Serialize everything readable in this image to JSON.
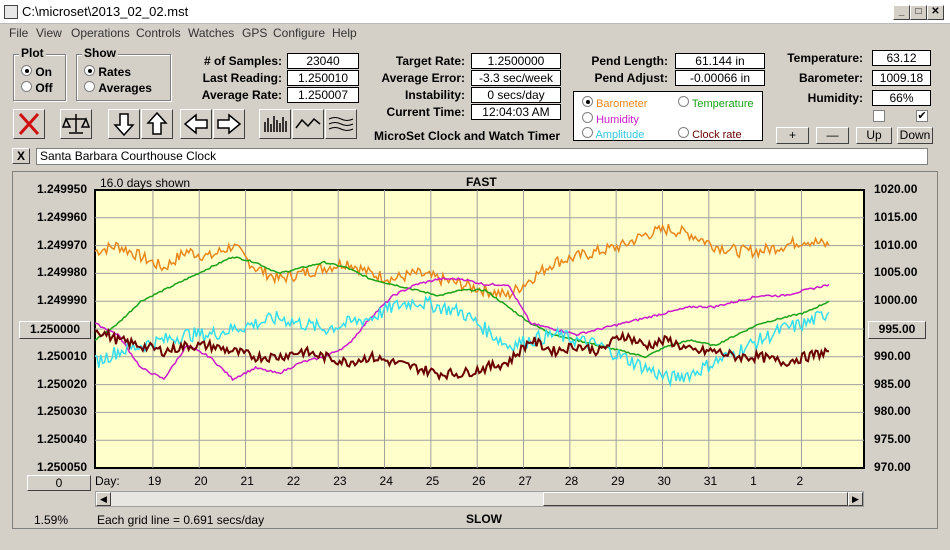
{
  "window": {
    "title": "C:\\microset\\2013_02_02.mst"
  },
  "menu": [
    "File",
    "View",
    "Operations",
    "Controls",
    "Watches",
    "GPS",
    "Configure",
    "Help"
  ],
  "plot_group": {
    "title": "Plot",
    "on_label": "On",
    "off_label": "Off",
    "selected": "On"
  },
  "show_group": {
    "title": "Show",
    "rates_label": "Rates",
    "averages_label": "Averages",
    "selected": "Rates"
  },
  "stats": {
    "samples_label": "# of Samples:",
    "samples_value": "23040",
    "last_label": "Last Reading:",
    "last_value": "1.250010",
    "avg_label": "Average Rate:",
    "avg_value": "1.250007",
    "target_label": "Target Rate:",
    "target_value": "1.2500000",
    "avgerr_label": "Average Error:",
    "avgerr_value": "-3.3 sec/week",
    "instab_label": "Instability:",
    "instab_value": "0 secs/day",
    "time_label": "Current Time:",
    "time_value": "12:04:03 AM",
    "pendlen_label": "Pend Length:",
    "pendlen_value": "61.144 in",
    "pendadj_label": "Pend Adjust:",
    "pendadj_value": "-0.00066 in",
    "temp_label": "Temperature:",
    "temp_value": "63.12",
    "baro_label": "Barometer:",
    "baro_value": "1009.18",
    "hum_label": "Humidity:",
    "hum_value": "66%"
  },
  "app_caption": "MicroSet Clock and Watch Timer",
  "sensor_options": {
    "barometer": "Barometer",
    "temperature": "Temperature",
    "humidity": "Humidity",
    "amplitude": "Amplitude",
    "clockrate": "Clock rate",
    "selected": "Barometer"
  },
  "right_buttons": {
    "plus": "+",
    "minus": "—",
    "up": "Up",
    "down": "Down"
  },
  "checkboxes": {
    "left": false,
    "right": true
  },
  "clock_name": "Santa Barbara Courthouse Clock",
  "close_x": "X",
  "chart": {
    "days_shown": "16.0 days shown",
    "top_label": "FAST",
    "bottom_label": "SLOW",
    "grid_note": "Each grid line = 0.691 secs/day",
    "percent": "1.59%",
    "left_center_button": "1.250000",
    "right_center_button": "995.00",
    "bottom_left_button": "0",
    "day_label": "Day:"
  },
  "colors": {
    "plot_bg": "#ffffcc",
    "barometer": "#e8861a",
    "temperature": "#19a319",
    "humidity": "#cc19cc",
    "amplitude": "#33ddee",
    "clockrate": "#6b0000"
  },
  "chart_data": {
    "type": "line",
    "y_left_ticks": [
      "1.249950",
      "1.249960",
      "1.249970",
      "1.249980",
      "1.249990",
      "1.250000",
      "1.250010",
      "1.250020",
      "1.250030",
      "1.250040",
      "1.250050"
    ],
    "y_right_ticks": [
      "1020.00",
      "1015.00",
      "1010.00",
      "1005.00",
      "1000.00",
      "995.00",
      "990.00",
      "985.00",
      "980.00",
      "975.00",
      "970.00"
    ],
    "x_ticks": [
      "19",
      "20",
      "21",
      "22",
      "23",
      "24",
      "25",
      "26",
      "27",
      "28",
      "29",
      "30",
      "31",
      "1",
      "2"
    ],
    "ylim_right": [
      970,
      1020
    ],
    "series": [
      {
        "key": "barometer",
        "x": [
          0,
          0.5,
          1,
          1.5,
          2,
          2.5,
          3,
          3.5,
          4,
          4.5,
          5,
          5.5,
          6,
          6.5,
          7,
          7.5,
          8,
          8.5,
          9,
          9.5,
          10,
          10.5,
          11,
          11.5,
          12,
          12.5,
          13,
          13.5,
          14,
          14.5,
          15,
          15.5,
          16
        ],
        "values": [
          1009,
          1010,
          1008,
          1006,
          1009,
          1008,
          1010,
          1006,
          1004,
          1005,
          1006,
          1007,
          1005,
          1004,
          1005,
          1004,
          1003,
          1002,
          1001,
          1004,
          1007,
          1008,
          1009,
          1010,
          1012,
          1013,
          1012,
          1010,
          1009,
          1009,
          1010,
          1011,
          1010
        ]
      },
      {
        "key": "temperature",
        "x": [
          0,
          0.5,
          1,
          1.5,
          2,
          2.5,
          3,
          3.5,
          4,
          4.5,
          5,
          5.5,
          6,
          6.5,
          7,
          7.5,
          8,
          8.5,
          9,
          9.5,
          10,
          10.5,
          11,
          11.5,
          12,
          12.5,
          13,
          13.5,
          14,
          14.5,
          15,
          15.5,
          16
        ],
        "values": [
          993,
          996,
          1000,
          1002,
          1004,
          1006,
          1008,
          1007,
          1005,
          1006,
          1007,
          1006,
          1004,
          1003,
          1002,
          1001,
          1002,
          1002,
          999,
          996,
          994,
          993,
          992,
          991,
          990,
          992,
          993,
          992,
          994,
          996,
          997,
          998,
          1000
        ]
      },
      {
        "key": "humidity",
        "x": [
          0,
          0.5,
          1,
          1.5,
          2,
          2.5,
          3,
          3.5,
          4,
          4.5,
          5,
          5.5,
          6,
          6.5,
          7,
          7.5,
          8,
          8.5,
          9,
          9.5,
          10,
          10.5,
          11,
          11.5,
          12,
          12.5,
          13,
          13.5,
          14,
          14.5,
          15,
          15.5,
          16
        ],
        "values": [
          996,
          994,
          988,
          986,
          992,
          990,
          986,
          988,
          987,
          989,
          990,
          992,
          997,
          1001,
          1003,
          1004,
          1004,
          1003,
          1003,
          996,
          995,
          994,
          995,
          996,
          997,
          998,
          999,
          999,
          1000,
          1001,
          1001,
          1002,
          1003
        ]
      },
      {
        "key": "amplitude",
        "x": [
          0,
          0.5,
          1,
          1.5,
          2,
          2.5,
          3,
          3.5,
          4,
          4.5,
          5,
          5.5,
          6,
          6.5,
          7,
          7.5,
          8,
          8.5,
          9,
          9.5,
          10,
          10.5,
          11,
          11.5,
          12,
          12.5,
          13,
          13.5,
          14,
          14.5,
          15,
          15.5,
          16
        ],
        "values": [
          989,
          991,
          992,
          993,
          994,
          994,
          995,
          996,
          997,
          996,
          995,
          996,
          997,
          999,
          1000,
          999,
          998,
          995,
          992,
          993,
          994,
          993,
          992,
          990,
          988,
          986,
          987,
          989,
          991,
          993,
          995,
          996,
          998
        ]
      },
      {
        "key": "clockrate",
        "x": [
          0,
          0.5,
          1,
          1.5,
          2,
          2.5,
          3,
          3.5,
          4,
          4.5,
          5,
          5.5,
          6,
          6.5,
          7,
          7.5,
          8,
          8.5,
          9,
          9.5,
          10,
          10.5,
          11,
          11.5,
          12,
          12.5,
          13,
          13.5,
          14,
          14.5,
          15,
          15.5,
          16
        ],
        "values": [
          995,
          993,
          992,
          991,
          992,
          992,
          991,
          990,
          990,
          991,
          990,
          989,
          990,
          989,
          988,
          987,
          987,
          988,
          989,
          993,
          991,
          992,
          991,
          994,
          992,
          993,
          991,
          991,
          990,
          990,
          989,
          990,
          991
        ]
      }
    ]
  }
}
